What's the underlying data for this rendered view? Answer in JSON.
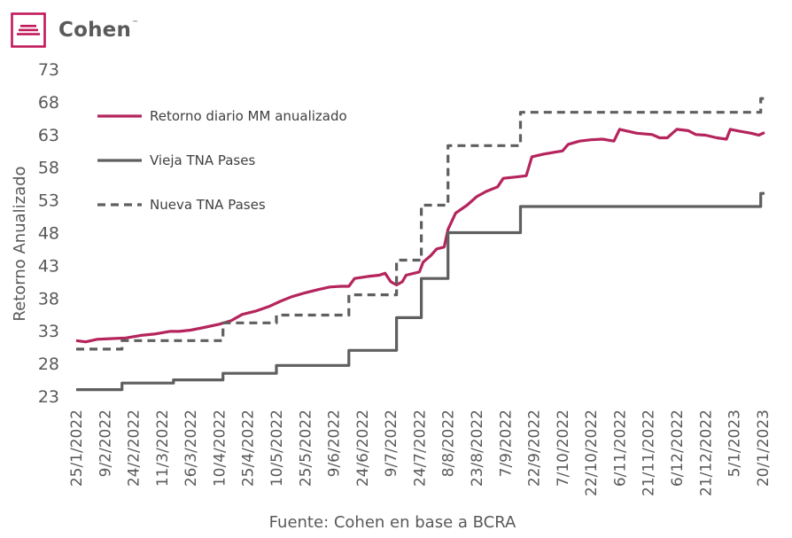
{
  "brand": {
    "name": "Cohen",
    "tm": "™",
    "color": "#c2185b"
  },
  "chart_data": {
    "type": "line",
    "ylabel": "Retorno Anualizado",
    "source": "Fuente: Cohen en base a BCRA",
    "ylim": [
      23,
      73
    ],
    "yticks": [
      23,
      28,
      33,
      38,
      43,
      48,
      53,
      58,
      63,
      68,
      73
    ],
    "xrange": [
      "2022-01-25",
      "2023-01-21"
    ],
    "xticks": [
      {
        "date": "2022-01-25",
        "label": "25/1/2022"
      },
      {
        "date": "2022-02-09",
        "label": "9/2/2022"
      },
      {
        "date": "2022-02-24",
        "label": "24/2/2022"
      },
      {
        "date": "2022-03-11",
        "label": "11/3/2022"
      },
      {
        "date": "2022-03-26",
        "label": "26/3/2022"
      },
      {
        "date": "2022-04-10",
        "label": "10/4/2022"
      },
      {
        "date": "2022-04-25",
        "label": "25/4/2022"
      },
      {
        "date": "2022-05-10",
        "label": "10/5/2022"
      },
      {
        "date": "2022-05-25",
        "label": "25/5/2022"
      },
      {
        "date": "2022-06-09",
        "label": "9/6/2022"
      },
      {
        "date": "2022-06-24",
        "label": "24/6/2022"
      },
      {
        "date": "2022-07-09",
        "label": "9/7/2022"
      },
      {
        "date": "2022-07-24",
        "label": "24/7/2022"
      },
      {
        "date": "2022-08-08",
        "label": "8/8/2022"
      },
      {
        "date": "2022-08-23",
        "label": "23/8/2022"
      },
      {
        "date": "2022-09-07",
        "label": "7/9/2022"
      },
      {
        "date": "2022-09-22",
        "label": "22/9/2022"
      },
      {
        "date": "2022-10-07",
        "label": "7/10/2022"
      },
      {
        "date": "2022-10-22",
        "label": "22/10/2022"
      },
      {
        "date": "2022-11-06",
        "label": "6/11/2022"
      },
      {
        "date": "2022-11-21",
        "label": "21/11/2022"
      },
      {
        "date": "2022-12-06",
        "label": "6/12/2022"
      },
      {
        "date": "2022-12-21",
        "label": "21/12/2022"
      },
      {
        "date": "2023-01-05",
        "label": "5/1/2023"
      },
      {
        "date": "2023-01-20",
        "label": "20/1/2023"
      }
    ],
    "legend": {
      "position": "top-left"
    },
    "series": [
      {
        "name": "Retorno diario MM anualizado",
        "color": "#b5245c",
        "style": "solid",
        "points": [
          [
            "2022-01-25",
            31.5
          ],
          [
            "2022-01-30",
            31.3
          ],
          [
            "2022-02-05",
            31.7
          ],
          [
            "2022-02-12",
            31.8
          ],
          [
            "2022-02-20",
            31.9
          ],
          [
            "2022-02-28",
            32.3
          ],
          [
            "2022-03-07",
            32.5
          ],
          [
            "2022-03-15",
            32.9
          ],
          [
            "2022-03-20",
            32.9
          ],
          [
            "2022-03-26",
            33.1
          ],
          [
            "2022-04-02",
            33.5
          ],
          [
            "2022-04-10",
            34.0
          ],
          [
            "2022-04-16",
            34.5
          ],
          [
            "2022-04-22",
            35.5
          ],
          [
            "2022-04-29",
            36.0
          ],
          [
            "2022-05-06",
            36.7
          ],
          [
            "2022-05-12",
            37.5
          ],
          [
            "2022-05-18",
            38.2
          ],
          [
            "2022-05-25",
            38.8
          ],
          [
            "2022-06-01",
            39.3
          ],
          [
            "2022-06-07",
            39.7
          ],
          [
            "2022-06-13",
            39.8
          ],
          [
            "2022-06-17",
            39.8
          ],
          [
            "2022-06-20",
            41.0
          ],
          [
            "2022-06-27",
            41.3
          ],
          [
            "2022-07-03",
            41.5
          ],
          [
            "2022-07-06",
            41.8
          ],
          [
            "2022-07-09",
            40.5
          ],
          [
            "2022-07-12",
            40.0
          ],
          [
            "2022-07-15",
            40.5
          ],
          [
            "2022-07-17",
            41.5
          ],
          [
            "2022-07-24",
            42.0
          ],
          [
            "2022-07-26",
            43.5
          ],
          [
            "2022-07-30",
            44.5
          ],
          [
            "2022-08-02",
            45.5
          ],
          [
            "2022-08-06",
            45.8
          ],
          [
            "2022-08-08",
            48.5
          ],
          [
            "2022-08-12",
            51.0
          ],
          [
            "2022-08-18",
            52.2
          ],
          [
            "2022-08-23",
            53.5
          ],
          [
            "2022-08-28",
            54.3
          ],
          [
            "2022-09-03",
            55.0
          ],
          [
            "2022-09-06",
            56.3
          ],
          [
            "2022-09-12",
            56.5
          ],
          [
            "2022-09-18",
            56.7
          ],
          [
            "2022-09-21",
            59.6
          ],
          [
            "2022-09-27",
            60.0
          ],
          [
            "2022-10-03",
            60.3
          ],
          [
            "2022-10-07",
            60.5
          ],
          [
            "2022-10-10",
            61.5
          ],
          [
            "2022-10-16",
            62.0
          ],
          [
            "2022-10-22",
            62.2
          ],
          [
            "2022-10-28",
            62.3
          ],
          [
            "2022-11-03",
            62.0
          ],
          [
            "2022-11-06",
            63.8
          ],
          [
            "2022-11-09",
            63.6
          ],
          [
            "2022-11-15",
            63.2
          ],
          [
            "2022-11-23",
            63.0
          ],
          [
            "2022-11-27",
            62.5
          ],
          [
            "2022-12-01",
            62.5
          ],
          [
            "2022-12-06",
            63.8
          ],
          [
            "2022-12-12",
            63.6
          ],
          [
            "2022-12-16",
            63.0
          ],
          [
            "2022-12-21",
            62.9
          ],
          [
            "2022-12-27",
            62.5
          ],
          [
            "2023-01-01",
            62.3
          ],
          [
            "2023-01-03",
            63.8
          ],
          [
            "2023-01-08",
            63.5
          ],
          [
            "2023-01-14",
            63.2
          ],
          [
            "2023-01-18",
            62.9
          ],
          [
            "2023-01-21",
            63.3
          ]
        ]
      },
      {
        "name": "Vieja TNA Pases",
        "color": "#5f5f5f",
        "style": "solid",
        "steps": [
          [
            "2022-01-25",
            24.0
          ],
          [
            "2022-02-18",
            25.0
          ],
          [
            "2022-03-17",
            25.5
          ],
          [
            "2022-04-12",
            26.5
          ],
          [
            "2022-05-10",
            27.7
          ],
          [
            "2022-06-17",
            30.0
          ],
          [
            "2022-07-12",
            35.0
          ],
          [
            "2022-07-25",
            41.0
          ],
          [
            "2022-08-08",
            48.0
          ],
          [
            "2022-09-15",
            52.0
          ],
          [
            "2023-01-19",
            54.0
          ],
          [
            "2023-01-21",
            54.0
          ]
        ]
      },
      {
        "name": "Nueva TNA Pases",
        "color": "#5f5f5f",
        "style": "dashed",
        "steps": [
          [
            "2022-01-25",
            30.2
          ],
          [
            "2022-02-18",
            31.5
          ],
          [
            "2022-04-12",
            34.2
          ],
          [
            "2022-05-10",
            35.4
          ],
          [
            "2022-06-17",
            38.5
          ],
          [
            "2022-07-12",
            43.8
          ],
          [
            "2022-07-25",
            52.2
          ],
          [
            "2022-08-08",
            61.3
          ],
          [
            "2022-09-15",
            66.4
          ],
          [
            "2023-01-19",
            68.5
          ],
          [
            "2023-01-21",
            68.5
          ]
        ]
      }
    ]
  }
}
